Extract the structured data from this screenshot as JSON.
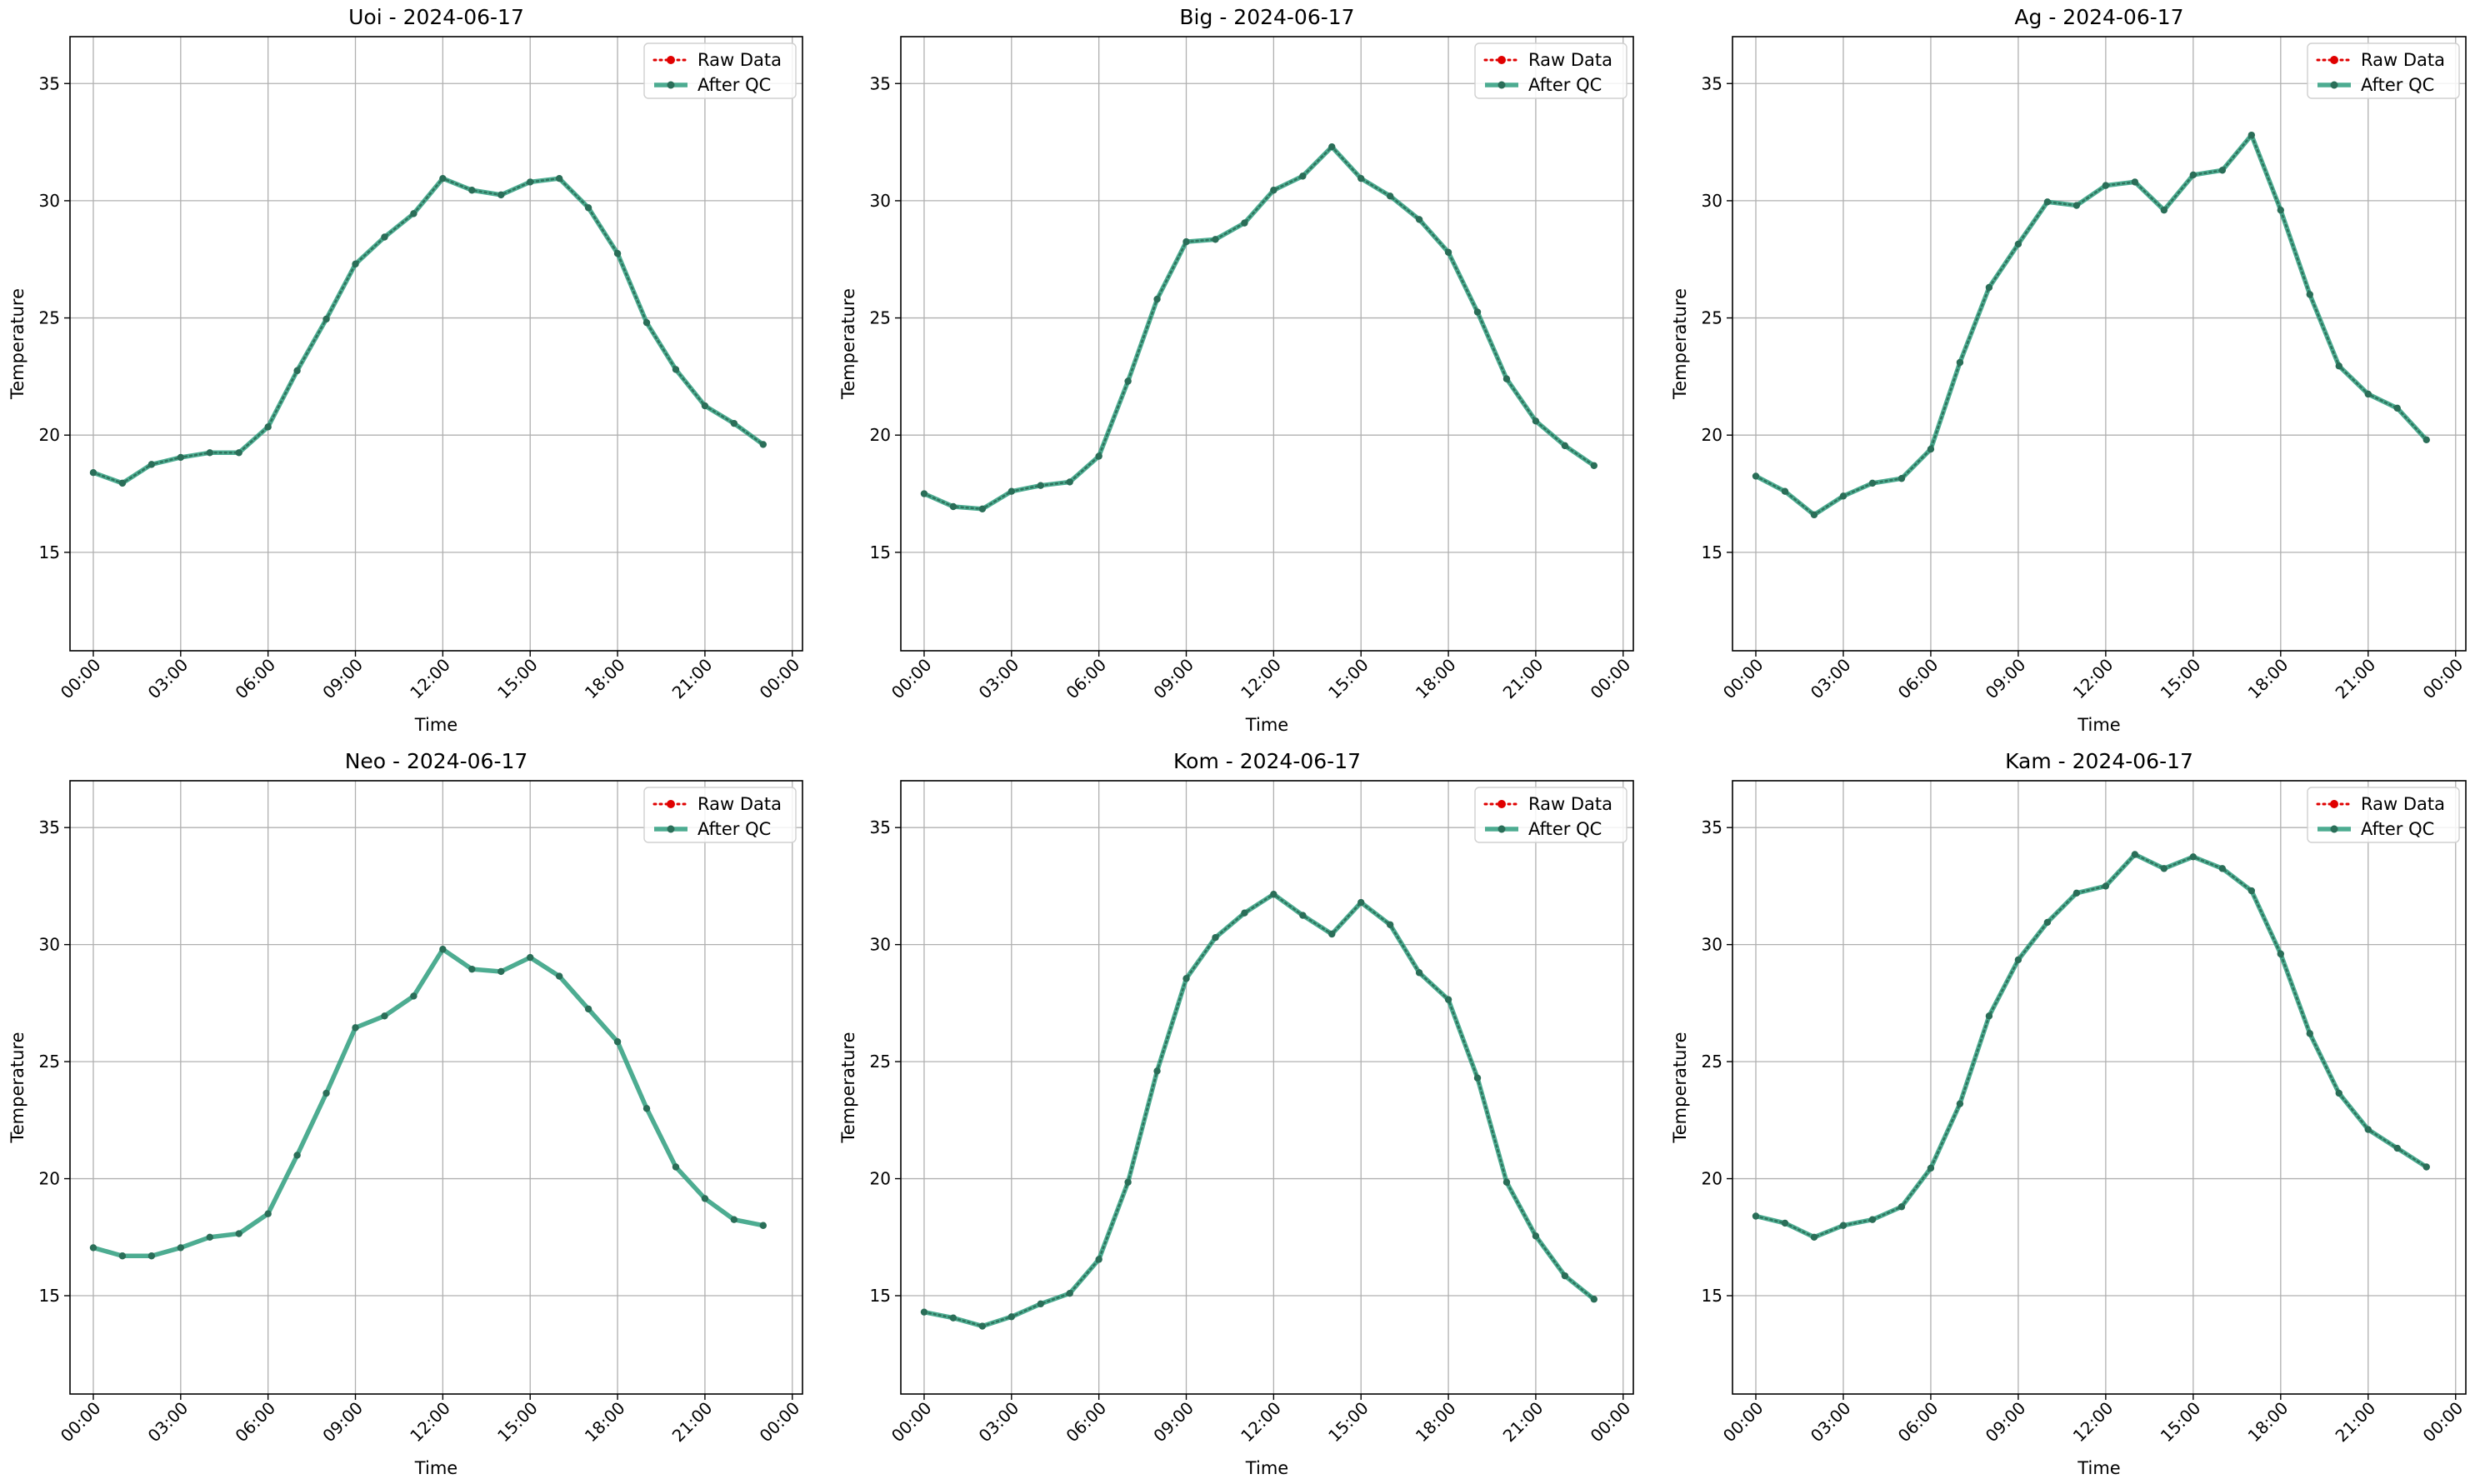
{
  "colors": {
    "raw": "#e00000",
    "qc": "#2e9e7e",
    "qc_marker": "#2a6e58",
    "grid": "#b0b0b0",
    "axis": "#000000",
    "legend_border": "#d0d0d0"
  },
  "chart_data": [
    {
      "type": "line",
      "title": "Uoi - 2024-06-17",
      "xlabel": "Time",
      "ylabel": "Temperature",
      "x_ticks": [
        "00:00",
        "03:00",
        "06:00",
        "09:00",
        "12:00",
        "15:00",
        "18:00",
        "21:00",
        "00:00"
      ],
      "y_ticks": [
        15,
        20,
        25,
        30,
        35
      ],
      "ylim": [
        10.8,
        37
      ],
      "grid": true,
      "legend_position": "top-right",
      "series": [
        {
          "name": "Raw Data",
          "values": [
            18.4,
            17.95,
            18.75,
            19.05,
            19.25,
            19.25,
            20.35,
            22.75,
            24.95,
            27.3,
            28.45,
            29.45,
            30.95,
            30.45,
            30.25,
            30.8,
            30.95,
            29.7,
            27.75,
            24.8,
            22.8,
            21.25,
            20.5,
            19.6
          ]
        },
        {
          "name": "After QC",
          "values": [
            18.4,
            17.95,
            18.75,
            19.05,
            19.25,
            19.25,
            20.35,
            22.75,
            24.95,
            27.3,
            28.45,
            29.45,
            30.95,
            30.45,
            30.25,
            30.8,
            30.95,
            29.7,
            27.75,
            24.8,
            22.8,
            21.25,
            20.5,
            19.6
          ]
        }
      ]
    },
    {
      "type": "line",
      "title": "Big - 2024-06-17",
      "xlabel": "Time",
      "ylabel": "Temperature",
      "x_ticks": [
        "00:00",
        "03:00",
        "06:00",
        "09:00",
        "12:00",
        "15:00",
        "18:00",
        "21:00",
        "00:00"
      ],
      "y_ticks": [
        15,
        20,
        25,
        30,
        35
      ],
      "ylim": [
        10.8,
        37
      ],
      "grid": true,
      "legend_position": "top-right",
      "series": [
        {
          "name": "Raw Data",
          "values": [
            17.5,
            16.95,
            16.85,
            17.6,
            17.85,
            18.0,
            19.1,
            22.3,
            25.8,
            28.25,
            28.35,
            29.05,
            30.45,
            31.05,
            32.3,
            30.95,
            30.2,
            29.2,
            27.8,
            25.25,
            22.4,
            20.6,
            19.55,
            18.7
          ]
        },
        {
          "name": "After QC",
          "values": [
            17.5,
            16.95,
            16.85,
            17.6,
            17.85,
            18.0,
            19.1,
            22.3,
            25.8,
            28.25,
            28.35,
            29.05,
            30.45,
            31.05,
            32.3,
            30.95,
            30.2,
            29.2,
            27.8,
            25.25,
            22.4,
            20.6,
            19.55,
            18.7
          ]
        }
      ]
    },
    {
      "type": "line",
      "title": "Ag - 2024-06-17",
      "xlabel": "Time",
      "ylabel": "Temperature",
      "x_ticks": [
        "00:00",
        "03:00",
        "06:00",
        "09:00",
        "12:00",
        "15:00",
        "18:00",
        "21:00",
        "00:00"
      ],
      "y_ticks": [
        15,
        20,
        25,
        30,
        35
      ],
      "ylim": [
        10.8,
        37
      ],
      "grid": true,
      "legend_position": "top-right",
      "series": [
        {
          "name": "Raw Data",
          "values": [
            18.25,
            17.6,
            16.6,
            17.4,
            17.95,
            18.15,
            19.4,
            23.1,
            26.3,
            28.15,
            29.95,
            29.8,
            30.65,
            30.8,
            29.6,
            31.1,
            31.3,
            32.8,
            29.6,
            26.0,
            22.95,
            21.75,
            21.15,
            19.8
          ]
        },
        {
          "name": "After QC",
          "values": [
            18.25,
            17.6,
            16.6,
            17.4,
            17.95,
            18.15,
            19.4,
            23.1,
            26.3,
            28.15,
            29.95,
            29.8,
            30.65,
            30.8,
            29.6,
            31.1,
            31.3,
            32.8,
            29.6,
            26.0,
            22.95,
            21.75,
            21.15,
            19.8
          ]
        }
      ]
    },
    {
      "type": "line",
      "title": "Neo - 2024-06-17",
      "xlabel": "Time",
      "ylabel": "Temperature",
      "x_ticks": [
        "00:00",
        "03:00",
        "06:00",
        "09:00",
        "12:00",
        "15:00",
        "18:00",
        "21:00",
        "00:00"
      ],
      "y_ticks": [
        15,
        20,
        25,
        30,
        35
      ],
      "ylim": [
        10.8,
        37
      ],
      "grid": true,
      "legend_position": "top-right",
      "series": [
        {
          "name": "Raw Data",
          "values": []
        },
        {
          "name": "After QC",
          "values": [
            17.05,
            16.7,
            16.7,
            17.05,
            17.5,
            17.65,
            18.5,
            21.0,
            23.65,
            26.45,
            26.95,
            27.8,
            29.8,
            28.95,
            28.85,
            29.45,
            28.65,
            27.25,
            25.85,
            23.0,
            20.5,
            19.15,
            18.25,
            18.0
          ]
        }
      ]
    },
    {
      "type": "line",
      "title": "Kom - 2024-06-17",
      "xlabel": "Time",
      "ylabel": "Temperature",
      "x_ticks": [
        "00:00",
        "03:00",
        "06:00",
        "09:00",
        "12:00",
        "15:00",
        "18:00",
        "21:00",
        "00:00"
      ],
      "y_ticks": [
        15,
        20,
        25,
        30,
        35
      ],
      "ylim": [
        10.8,
        37
      ],
      "grid": true,
      "legend_position": "top-right",
      "series": [
        {
          "name": "Raw Data",
          "values": [
            14.3,
            14.05,
            13.7,
            14.1,
            14.65,
            15.1,
            16.55,
            19.85,
            24.6,
            28.55,
            30.3,
            31.35,
            32.15,
            31.25,
            30.45,
            31.8,
            30.85,
            28.8,
            27.65,
            24.3,
            19.85,
            17.55,
            15.85,
            14.85
          ]
        },
        {
          "name": "After QC",
          "values": [
            14.3,
            14.05,
            13.7,
            14.1,
            14.65,
            15.1,
            16.55,
            19.85,
            24.6,
            28.55,
            30.3,
            31.35,
            32.15,
            31.25,
            30.45,
            31.8,
            30.85,
            28.8,
            27.65,
            24.3,
            19.85,
            17.55,
            15.85,
            14.85
          ]
        }
      ]
    },
    {
      "type": "line",
      "title": "Kam - 2024-06-17",
      "xlabel": "Time",
      "ylabel": "Temperature",
      "x_ticks": [
        "00:00",
        "03:00",
        "06:00",
        "09:00",
        "12:00",
        "15:00",
        "18:00",
        "21:00",
        "00:00"
      ],
      "y_ticks": [
        15,
        20,
        25,
        30,
        35
      ],
      "ylim": [
        10.8,
        37
      ],
      "grid": true,
      "legend_position": "top-right",
      "series": [
        {
          "name": "Raw Data",
          "values": [
            18.4,
            18.1,
            17.5,
            18.0,
            18.25,
            18.8,
            20.45,
            23.2,
            26.95,
            29.35,
            30.95,
            32.2,
            32.5,
            33.85,
            33.25,
            33.75,
            33.25,
            32.3,
            29.6,
            26.2,
            23.65,
            22.1,
            21.3,
            20.5
          ]
        },
        {
          "name": "After QC",
          "values": [
            18.4,
            18.1,
            17.5,
            18.0,
            18.25,
            18.8,
            20.45,
            23.2,
            26.95,
            29.35,
            30.95,
            32.2,
            32.5,
            33.85,
            33.25,
            33.75,
            33.25,
            32.3,
            29.6,
            26.2,
            23.65,
            22.1,
            21.3,
            20.5
          ]
        }
      ]
    }
  ]
}
